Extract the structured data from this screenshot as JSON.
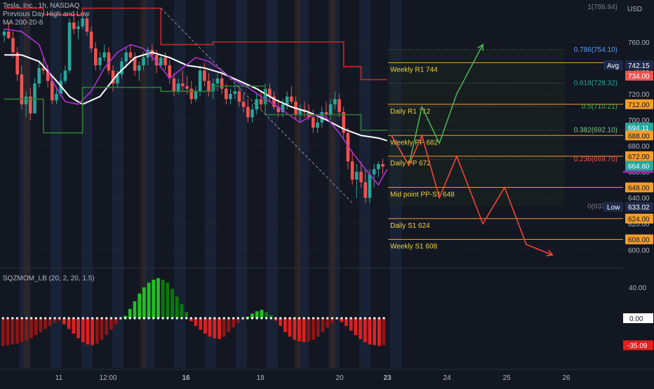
{
  "header": {
    "symbol": "Tesla, Inc., 1h, NASDAQ",
    "indicators": [
      "Previous Day High and Low",
      "MA 200-20-8"
    ],
    "oscillator_label": "SQZMOM_LB (20, 2, 20, 1.5)"
  },
  "colors": {
    "background": "#131722",
    "bull": "#26a69a",
    "bear": "#ef5350",
    "ma_fast": "#ffffff",
    "ma_slow": "#b12fd6",
    "pdh": "#c62828",
    "pdl": "#2e7d32",
    "level_line": "#f59d2a",
    "level_text": "#f2d13f",
    "up_path": "#4caf50",
    "down_path": "#f44336",
    "mom_green": "#21c21e",
    "mom_red": "#e01f1f"
  },
  "chart_data": [
    {
      "type": "candlestick",
      "title": "Tesla, Inc., 1h, NASDAQ",
      "y_axis_unit": "USD",
      "y_axis_ticks": [
        "600.00",
        "620.00",
        "640.00",
        "660.00",
        "680.00",
        "700.00",
        "720.00",
        "740.00",
        "760.00"
      ],
      "ylim": [
        598,
        788
      ],
      "x_axis_ticks": [
        "11",
        "12:00",
        "16",
        "18",
        "20",
        "23",
        "24",
        "25",
        "26"
      ],
      "series": [
        {
          "name": "MA 200-20-8",
          "kind": "line",
          "x": [
            0,
            4,
            8,
            12,
            15,
            18,
            22,
            26,
            30,
            34,
            38,
            42,
            46,
            50,
            54,
            58,
            62,
            66,
            70,
            74,
            78,
            82,
            86,
            88
          ],
          "values": [
            750,
            750,
            745,
            730,
            718,
            712,
            718,
            735,
            748,
            752,
            748,
            742,
            740,
            736,
            730,
            724,
            716,
            710,
            706,
            700,
            693,
            688,
            686,
            684
          ]
        },
        {
          "name": "MA 8",
          "kind": "line",
          "x": [
            0,
            4,
            8,
            11,
            14,
            17,
            20,
            23,
            26,
            29,
            32,
            35,
            38,
            41,
            44,
            47,
            50,
            53,
            56,
            59,
            62,
            65,
            68,
            71,
            74,
            77,
            80,
            83,
            86,
            88
          ],
          "values": [
            770,
            768,
            758,
            730,
            714,
            712,
            722,
            740,
            752,
            758,
            755,
            745,
            732,
            740,
            748,
            745,
            738,
            730,
            725,
            718,
            712,
            705,
            698,
            704,
            702,
            690,
            675,
            662,
            650,
            662
          ]
        },
        {
          "name": "Previous Day High",
          "kind": "step",
          "x": [
            0,
            6,
            9,
            15,
            18,
            24,
            30,
            36,
            42,
            48,
            54,
            60,
            66,
            72,
            78,
            82,
            84,
            88
          ],
          "values": [
            786,
            786,
            781,
            781,
            786,
            786,
            786,
            758,
            758,
            760,
            760,
            760,
            760,
            760,
            741,
            731,
            731,
            731
          ]
        },
        {
          "name": "Previous Day Low",
          "kind": "step",
          "x": [
            0,
            6,
            9,
            15,
            18,
            24,
            30,
            36,
            42,
            48,
            54,
            60,
            66,
            72,
            78,
            82,
            84,
            88
          ],
          "values": [
            716,
            716,
            690,
            690,
            725,
            725,
            725,
            722,
            722,
            726,
            726,
            704,
            704,
            704,
            704,
            692,
            692,
            692
          ]
        }
      ],
      "candles": [
        [
          765,
          770,
          760,
          768
        ],
        [
          768,
          775,
          762,
          763
        ],
        [
          763,
          768,
          748,
          752
        ],
        [
          752,
          756,
          730,
          735
        ],
        [
          735,
          742,
          708,
          712
        ],
        [
          712,
          722,
          702,
          718
        ],
        [
          718,
          725,
          700,
          705
        ],
        [
          705,
          732,
          705,
          728
        ],
        [
          728,
          745,
          725,
          740
        ],
        [
          740,
          748,
          735,
          738
        ],
        [
          738,
          742,
          725,
          730
        ],
        [
          730,
          732,
          712,
          715
        ],
        [
          715,
          724,
          712,
          720
        ],
        [
          720,
          736,
          718,
          730
        ],
        [
          730,
          742,
          728,
          738
        ],
        [
          738,
          778,
          736,
          775
        ],
        [
          775,
          781,
          766,
          770
        ],
        [
          770,
          776,
          762,
          772
        ],
        [
          772,
          782,
          770,
          778
        ],
        [
          778,
          780,
          765,
          768
        ],
        [
          768,
          772,
          752,
          755
        ],
        [
          755,
          760,
          738,
          742
        ],
        [
          742,
          752,
          738,
          748
        ],
        [
          748,
          758,
          745,
          752
        ],
        [
          752,
          756,
          735,
          738
        ],
        [
          738,
          742,
          722,
          728
        ],
        [
          728,
          738,
          725,
          735
        ],
        [
          735,
          748,
          732,
          745
        ],
        [
          745,
          756,
          740,
          752
        ],
        [
          752,
          758,
          744,
          748
        ],
        [
          748,
          752,
          734,
          738
        ],
        [
          738,
          745,
          730,
          742
        ],
        [
          742,
          752,
          738,
          748
        ],
        [
          748,
          756,
          742,
          754
        ],
        [
          754,
          758,
          745,
          750
        ],
        [
          750,
          754,
          736,
          742
        ],
        [
          742,
          750,
          740,
          748
        ],
        [
          748,
          752,
          738,
          742
        ],
        [
          742,
          746,
          728,
          732
        ],
        [
          732,
          736,
          718,
          722
        ],
        [
          722,
          732,
          720,
          728
        ],
        [
          728,
          738,
          722,
          726
        ],
        [
          726,
          734,
          720,
          724
        ],
        [
          724,
          730,
          712,
          716
        ],
        [
          716,
          726,
          714,
          722
        ],
        [
          722,
          742,
          718,
          738
        ],
        [
          738,
          744,
          726,
          730
        ],
        [
          730,
          736,
          718,
          722
        ],
        [
          722,
          732,
          716,
          728
        ],
        [
          728,
          736,
          722,
          732
        ],
        [
          732,
          738,
          720,
          724
        ],
        [
          724,
          728,
          712,
          716
        ],
        [
          716,
          724,
          712,
          720
        ],
        [
          720,
          728,
          716,
          722
        ],
        [
          722,
          726,
          710,
          714
        ],
        [
          714,
          720,
          706,
          710
        ],
        [
          710,
          716,
          698,
          702
        ],
        [
          702,
          712,
          698,
          708
        ],
        [
          708,
          720,
          704,
          716
        ],
        [
          716,
          722,
          708,
          712
        ],
        [
          712,
          728,
          710,
          724
        ],
        [
          724,
          728,
          714,
          718
        ],
        [
          718,
          722,
          708,
          710
        ],
        [
          710,
          716,
          702,
          706
        ],
        [
          706,
          716,
          702,
          712
        ],
        [
          712,
          722,
          708,
          718
        ],
        [
          718,
          726,
          712,
          714
        ],
        [
          714,
          718,
          700,
          704
        ],
        [
          704,
          712,
          698,
          708
        ],
        [
          708,
          714,
          702,
          706
        ],
        [
          706,
          712,
          700,
          702
        ],
        [
          702,
          708,
          690,
          694
        ],
        [
          694,
          702,
          690,
          698
        ],
        [
          698,
          710,
          694,
          706
        ],
        [
          706,
          714,
          700,
          704
        ],
        [
          704,
          716,
          700,
          712
        ],
        [
          712,
          722,
          708,
          716
        ],
        [
          716,
          720,
          702,
          706
        ],
        [
          706,
          710,
          686,
          690
        ],
        [
          690,
          694,
          662,
          668
        ],
        [
          668,
          676,
          650,
          654
        ],
        [
          654,
          666,
          640,
          660
        ],
        [
          660,
          668,
          648,
          652
        ],
        [
          652,
          662,
          636,
          640
        ],
        [
          640,
          662,
          636,
          658
        ],
        [
          658,
          666,
          648,
          662
        ],
        [
          662,
          668,
          656,
          666
        ],
        [
          666,
          670,
          658,
          664
        ]
      ],
      "annotations": [
        {
          "text": "Weekly R1 744"
        },
        {
          "text": "Daily R1 712"
        },
        {
          "text": "Weekly PP 682"
        },
        {
          "text": "Daily PP 672"
        },
        {
          "text": "Mid point PP-S1 648"
        },
        {
          "text": "Daily S1 624"
        },
        {
          "text": "Weekly S1 608"
        }
      ],
      "fib_labels": [
        "1(786.94)",
        "0.786(754.10)",
        "0.618(728.32)",
        "0.5(710.21)",
        "0.382(692.10)",
        "0.236(669.70)",
        "0(633.48)"
      ],
      "price_tags": [
        {
          "text": "760.00"
        },
        {
          "text": "Avg",
          "value": "742.15"
        },
        {
          "text": "734.00"
        },
        {
          "text": "712.00"
        },
        {
          "text": "694.11"
        },
        {
          "text": "688.00"
        },
        {
          "text": "672.00"
        },
        {
          "text": "664.60"
        },
        {
          "text": "648.00"
        },
        {
          "text": "Low",
          "value": "633.02"
        },
        {
          "text": "624.00"
        },
        {
          "text": "608.00"
        },
        {
          "text": "600.00"
        }
      ],
      "projection_up": {
        "x": [
          89,
          93,
          96,
          100,
          104,
          110
        ],
        "y": [
          688,
          665,
          710,
          682,
          720,
          758
        ]
      },
      "projection_down": {
        "x": [
          89,
          93,
          96,
          100,
          104,
          110,
          115,
          120,
          126
        ],
        "y": [
          688,
          665,
          688,
          640,
          672,
          620,
          648,
          604,
          596
        ]
      }
    },
    {
      "type": "bar",
      "title": "SQZMOM_LB (20, 2, 20, 1.5)",
      "y_axis_ticks": [
        "40.00",
        "0.00",
        "-35.09"
      ],
      "ylim": [
        -40,
        60
      ],
      "values": [
        -36,
        -35,
        -34,
        -33,
        -31,
        -29,
        -26,
        -22,
        -18,
        -14,
        -10,
        -6,
        -3,
        -8,
        -14,
        -20,
        -26,
        -31,
        -34,
        -35,
        -33,
        -28,
        -22,
        -15,
        -8,
        -2,
        3,
        12,
        22,
        32,
        40,
        46,
        50,
        52,
        50,
        46,
        38,
        28,
        18,
        8,
        -4,
        -10,
        -15,
        -20,
        -24,
        -26,
        -27,
        -24,
        -18,
        -12,
        -6,
        -2,
        2,
        6,
        9,
        11,
        8,
        4,
        -3,
        -10,
        -18,
        -24,
        -28,
        -30,
        -31,
        -30,
        -28,
        -24,
        -18,
        -12,
        -6,
        -2,
        -5,
        -10,
        -16,
        -22,
        -27,
        -31,
        -34,
        -35,
        -36,
        -35.09
      ]
    }
  ]
}
